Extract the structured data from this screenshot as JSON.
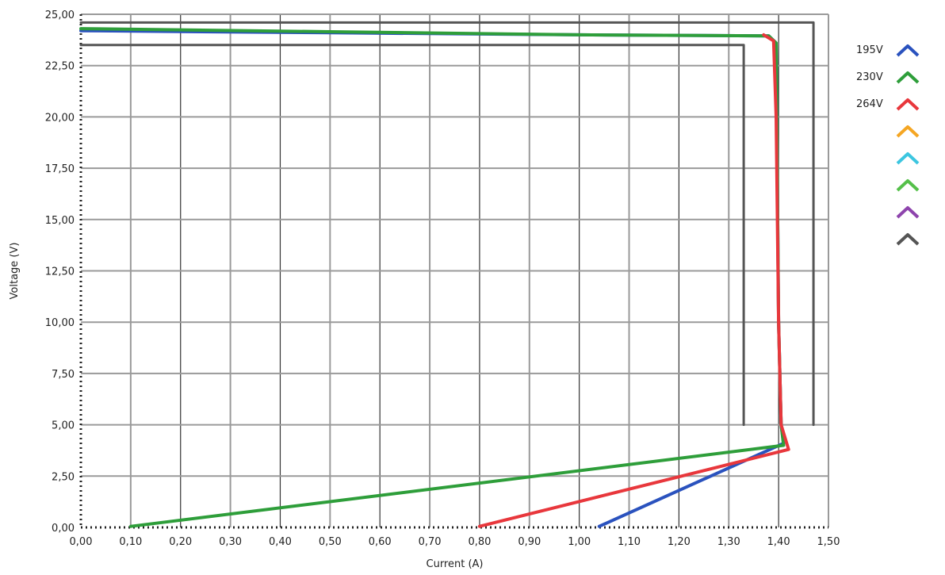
{
  "chart_data": {
    "type": "line",
    "xlabel": "Current (A)",
    "ylabel": "Voltage (V)",
    "xlim": [
      0,
      1.5
    ],
    "ylim": [
      0,
      25
    ],
    "x_ticks": [
      "0,00",
      "0,10",
      "0,20",
      "0,30",
      "0,40",
      "0,50",
      "0,60",
      "0,70",
      "0,80",
      "0,90",
      "1,00",
      "1,10",
      "1,20",
      "1,30",
      "1,40",
      "1,50"
    ],
    "y_ticks": [
      "0,00",
      "2,50",
      "5,00",
      "7,50",
      "10,00",
      "12,50",
      "15,00",
      "17,50",
      "20,00",
      "22,50",
      "25,00"
    ],
    "grid": true,
    "legend_position": "right",
    "series": [
      {
        "name": "195V",
        "color": "#2a52be",
        "points": [
          [
            0,
            24.2
          ],
          [
            0.5,
            24.1
          ],
          [
            1.0,
            24.0
          ],
          [
            1.38,
            23.95
          ],
          [
            1.395,
            23.6
          ],
          [
            1.4,
            10.0
          ],
          [
            1.405,
            5.0
          ],
          [
            1.41,
            4.1
          ],
          [
            1.04,
            0.05
          ]
        ]
      },
      {
        "name": "230V",
        "color": "#2e9e3a",
        "points": [
          [
            0,
            24.3
          ],
          [
            0.5,
            24.15
          ],
          [
            1.0,
            24.0
          ],
          [
            1.38,
            23.95
          ],
          [
            1.395,
            23.6
          ],
          [
            1.4,
            10.0
          ],
          [
            1.405,
            5.0
          ],
          [
            1.41,
            4.0
          ],
          [
            0.1,
            0.05
          ]
        ]
      },
      {
        "name": "264V",
        "color": "#e8373c",
        "points": [
          [
            1.37,
            24.0
          ],
          [
            1.39,
            23.7
          ],
          [
            1.395,
            20.0
          ],
          [
            1.4,
            10.0
          ],
          [
            1.405,
            5.0
          ],
          [
            1.42,
            3.8
          ],
          [
            0.8,
            0.05
          ]
        ]
      },
      {
        "name": "",
        "color": "#f5a623",
        "points": []
      },
      {
        "name": "",
        "color": "#3cc6e0",
        "points": []
      },
      {
        "name": "",
        "color": "#55c04a",
        "points": []
      },
      {
        "name": "",
        "color": "#8e44ad",
        "points": []
      },
      {
        "name": "",
        "color": "#555555",
        "points": [
          [
            0,
            24.6
          ],
          [
            1.47,
            24.6
          ],
          [
            1.47,
            5.0
          ]
        ]
      },
      {
        "name": "",
        "color": "#555555",
        "points": [
          [
            0,
            23.5
          ],
          [
            1.33,
            23.5
          ],
          [
            1.33,
            5.0
          ]
        ]
      }
    ],
    "legend": [
      {
        "name": "195V",
        "color": "#2a52be"
      },
      {
        "name": "230V",
        "color": "#2e9e3a"
      },
      {
        "name": "264V",
        "color": "#e8373c"
      },
      {
        "name": "",
        "color": "#f5a623"
      },
      {
        "name": "",
        "color": "#3cc6e0"
      },
      {
        "name": "",
        "color": "#55c04a"
      },
      {
        "name": "",
        "color": "#8e44ad"
      },
      {
        "name": "",
        "color": "#555555"
      }
    ]
  }
}
